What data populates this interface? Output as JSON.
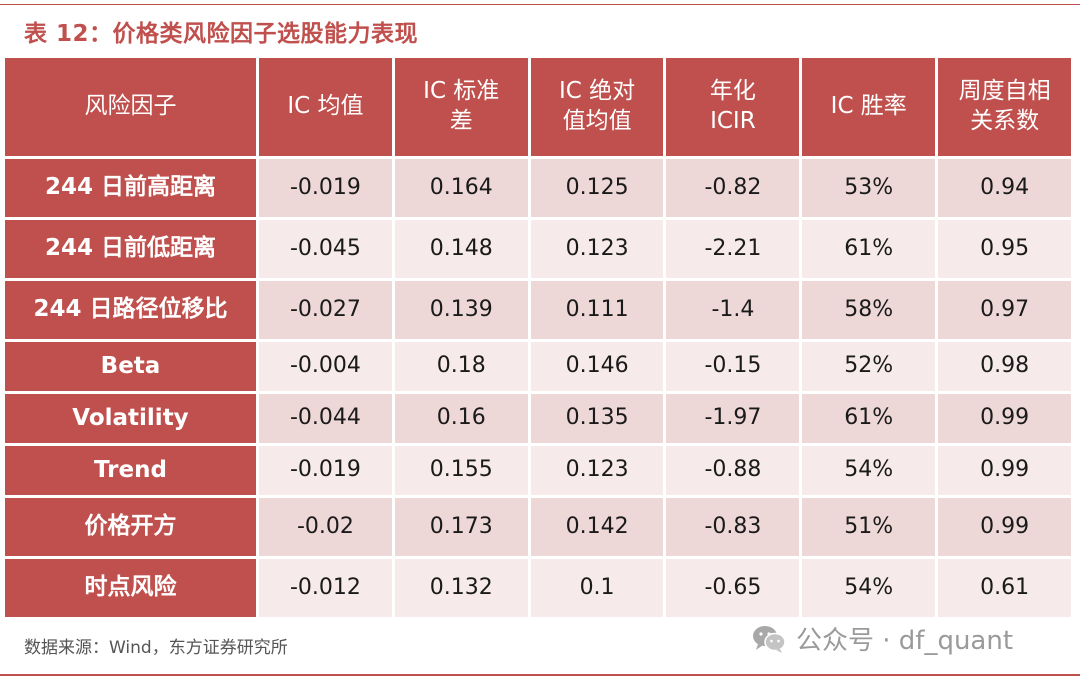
{
  "title": "表 12：价格类风险因子选股能力表现",
  "table": {
    "headers": [
      "风险因子",
      "IC 均值",
      "IC 标准\n差",
      "IC 绝对\n值均值",
      "年化\nICIR",
      "IC 胜率",
      "周度自相\n关系数"
    ],
    "rows": [
      [
        "244 日前高距离",
        "-0.019",
        "0.164",
        "0.125",
        "-0.82",
        "53%",
        "0.94"
      ],
      [
        "244 日前低距离",
        "-0.045",
        "0.148",
        "0.123",
        "-2.21",
        "61%",
        "0.95"
      ],
      [
        "244 日路径位移比",
        "-0.027",
        "0.139",
        "0.111",
        "-1.4",
        "58%",
        "0.97"
      ],
      [
        "Beta",
        "-0.004",
        "0.18",
        "0.146",
        "-0.15",
        "52%",
        "0.98"
      ],
      [
        "Volatility",
        "-0.044",
        "0.16",
        "0.135",
        "-1.97",
        "61%",
        "0.99"
      ],
      [
        "Trend",
        "-0.019",
        "0.155",
        "0.123",
        "-0.88",
        "54%",
        "0.99"
      ],
      [
        "价格开方",
        "-0.02",
        "0.173",
        "0.142",
        "-0.83",
        "51%",
        "0.99"
      ],
      [
        "时点风险",
        "-0.012",
        "0.132",
        "0.1",
        "-0.65",
        "54%",
        "0.61"
      ]
    ]
  },
  "source": "数据来源：Wind，东方证券研究所",
  "watermark": {
    "icon": "wechat-icon",
    "text": "公众号 · df_quant"
  },
  "colors": {
    "accent": "#c0504d",
    "row_dark": "#eed8d7",
    "row_light": "#f6eaea"
  }
}
